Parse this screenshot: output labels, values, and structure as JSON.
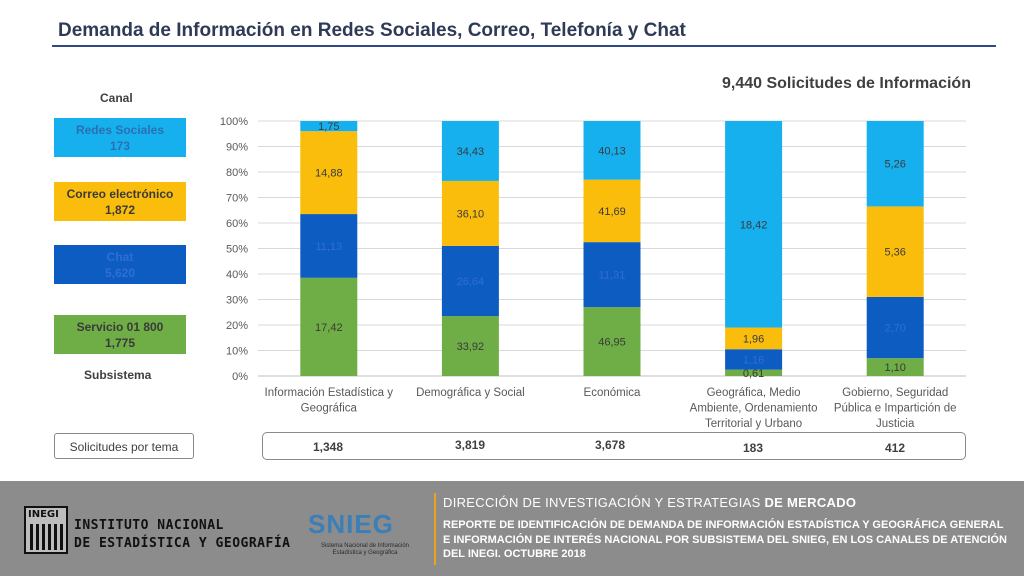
{
  "header": {
    "title": "Demanda de Información en Redes Sociales, Correo, Telefonía y Chat",
    "total_label": "9,440 Solicitudes de Información"
  },
  "legend": {
    "canal_label": "Canal",
    "subsistema_label": "Subsistema",
    "items": [
      {
        "name": "Redes Sociales",
        "value": "173",
        "color": "#17b0ef",
        "text_color": "#2c6fb0"
      },
      {
        "name": "Correo electrónico",
        "value": "1,872",
        "color": "#fbbd0b",
        "text_color": "#3a3a3a"
      },
      {
        "name": "Chat",
        "value": "5,620",
        "color": "#0d5cc2",
        "text_color": "#2f6fd4"
      },
      {
        "name": "Servicio 01 800",
        "value": "1,775",
        "color": "#6fad46",
        "text_color": "#3a3a3a"
      }
    ]
  },
  "chart_data": {
    "type": "stacked-bar-100",
    "title": "",
    "xlabel": "",
    "ylabel": "",
    "ylim": [
      0,
      100
    ],
    "yticks": [
      "0%",
      "10%",
      "20%",
      "30%",
      "40%",
      "50%",
      "60%",
      "70%",
      "80%",
      "90%",
      "100%"
    ],
    "categories": [
      [
        "Información Estadística y",
        "Geográfica"
      ],
      [
        "Demográfica y Social"
      ],
      [
        "Económica"
      ],
      [
        "Geográfica, Medio",
        "Ambiente, Ordenamiento",
        "Territorial y Urbano"
      ],
      [
        "Gobierno, Seguridad",
        "Pública e Impartición de",
        "Justicia"
      ]
    ],
    "series": [
      {
        "name": "Servicio 01 800",
        "color": "#6fad46",
        "label_color": "#3a3a3a",
        "heights": [
          38.5,
          23.5,
          27.0,
          2.5,
          7.0
        ],
        "labels": [
          "17,42",
          "33,92",
          "46,95",
          "0,61",
          "1,10"
        ]
      },
      {
        "name": "Chat",
        "color": "#0d5cc2",
        "label_color": "#2f6fd4",
        "heights": [
          25.0,
          27.5,
          25.5,
          8.0,
          24.0
        ],
        "labels": [
          "11,13",
          "26,64",
          "11,31",
          "1,16",
          "2,70"
        ]
      },
      {
        "name": "Correo electrónico",
        "color": "#fbbd0b",
        "label_color": "#3a3a3a",
        "heights": [
          32.5,
          25.5,
          24.5,
          8.5,
          35.5
        ],
        "labels": [
          "14,88",
          "36,10",
          "41,69",
          "1,96",
          "5,36"
        ]
      },
      {
        "name": "Redes Sociales",
        "color": "#17b0ef",
        "label_color": "#3a3a3a",
        "heights": [
          4.0,
          23.5,
          23.0,
          81.0,
          33.5
        ],
        "labels": [
          "1,75",
          "34,43",
          "40,13",
          "18,42",
          "5,26"
        ]
      }
    ]
  },
  "solicitudes": {
    "label": "Solicitudes por tema",
    "values": [
      "1,348",
      "3,819",
      "3,678",
      "183",
      "412"
    ]
  },
  "footer": {
    "inegi_letters": "INEGI",
    "inegi_line1": "INSTITUTO NACIONAL",
    "inegi_line2": "DE ESTADÍSTICA Y GEOGRAFÍA",
    "snieg_logo": "SNIEG",
    "snieg_subtitle": "Sistema Nacional de Información Estadística y Geográfica",
    "direction_main": "DIRECCIÓN DE INVESTIGACIÓN Y ESTRATEGIAS",
    "direction_bold": "DE MERCADO",
    "report": "REPORTE DE IDENTIFICACIÓN DE DEMANDA DE INFORMACIÓN ESTADÍSTICA Y GEOGRÁFICA GENERAL E INFORMACIÓN DE INTERÉS NACIONAL POR SUBSISTEMA DEL SNIEG, EN LOS CANALES DE ATENCIÓN DEL INEGI. OCTUBRE 2018"
  }
}
